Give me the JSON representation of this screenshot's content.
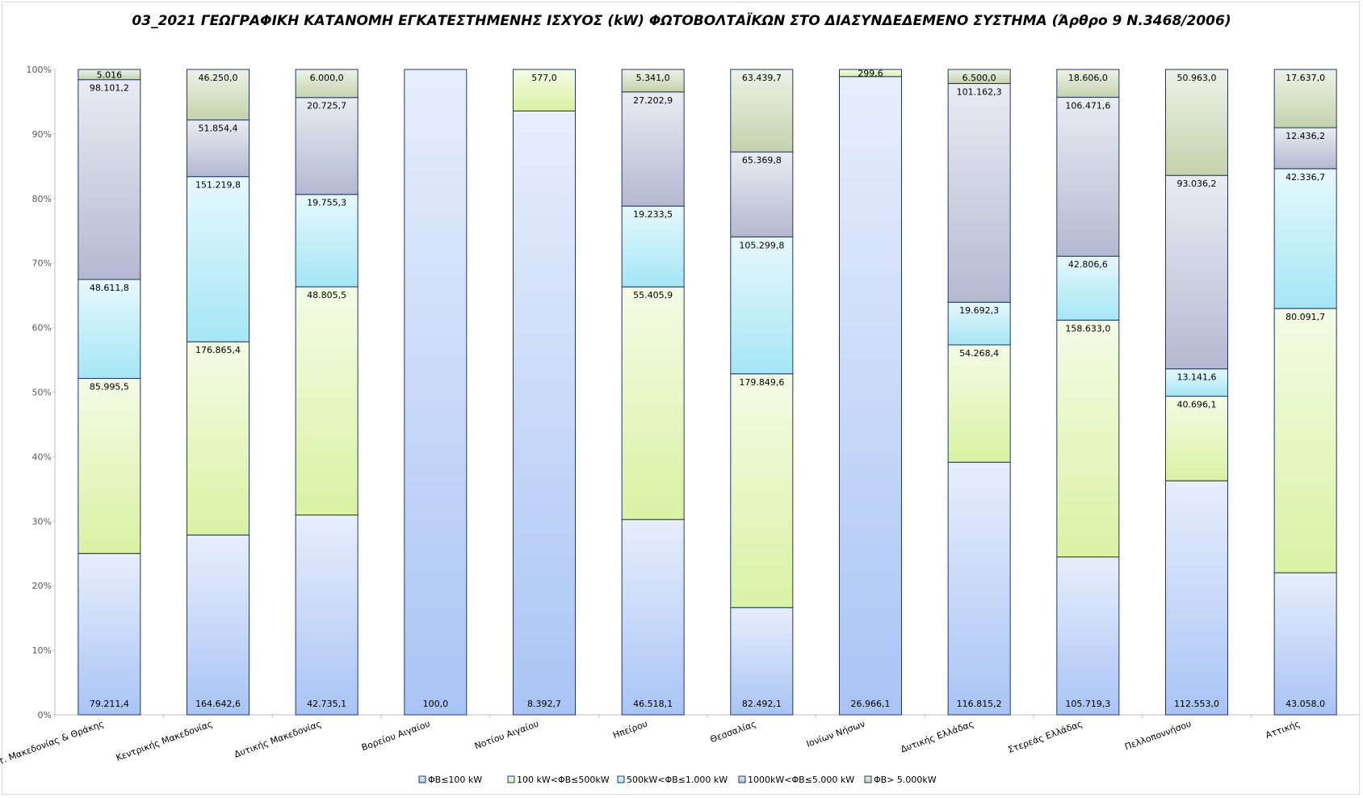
{
  "chart_data": {
    "type": "bar",
    "stacked": true,
    "normalized": true,
    "title": "03_2021 ΓΕΩΓΡΑΦΙΚΗ ΚΑΤΑΝΟΜΗ ΕΓΚΑΤΕΣΤΗΜΕΝΗΣ ΙΣΧΥΟΣ (kW) ΦΩΤΟΒΟΛΤΑΪΚΩΝ ΣΤΟ ΔΙΑΣΥΝΔΕΔΕΜΕΝΟ ΣΥΣΤΗΜΑ (Άρθρο 9 Ν.3468/2006)",
    "xlabel": "",
    "ylabel": "",
    "ylim": [
      0,
      100
    ],
    "yticks": [
      "0%",
      "10%",
      "20%",
      "30%",
      "40%",
      "50%",
      "60%",
      "70%",
      "80%",
      "90%",
      "100%"
    ],
    "legend_position": "bottom",
    "grid": false,
    "categories": [
      "Ανατ. Μακεδονίας & Θράκης",
      "Κεντρικής Μακεδονίας",
      "Δυτικής Μακεδονίας",
      "Βορείου Αιγαίου",
      "Νοτίου Αιγαίου",
      "Ηπείρου",
      "Θεσσαλίας",
      "Ιονίων Νήσων",
      "Δυτικής Ελλάδας",
      "Στερεάς Ελλάδας",
      "Πελλοποννήσου",
      "Αττικής"
    ],
    "series": [
      {
        "name": "ΦΒ≤100 kW",
        "color": "#a9c4f5",
        "values": [
          79211.4,
          164642.6,
          42735.1,
          100.0,
          8392.7,
          46518.1,
          82492.1,
          26966.1,
          116815.2,
          105719.3,
          112553.0,
          43058.0
        ],
        "labels": [
          "79.211,4",
          "164.642,6",
          "42.735,1",
          "100,0",
          "8.392,7",
          "46.518,1",
          "82.492,1",
          "26.966,1",
          "116.815,2",
          "105.719,3",
          "112.553,0",
          "43.058,0"
        ]
      },
      {
        "name": "100 kW<ΦΒ≤500kW",
        "color": "#d9f2a3",
        "values": [
          85995.5,
          176865.4,
          48805.5,
          0,
          577.0,
          55405.9,
          179849.6,
          299.6,
          54268.4,
          158633.0,
          40696.1,
          80091.7
        ],
        "labels": [
          "85.995,5",
          "176.865,4",
          "48.805,5",
          "",
          "577,0",
          "55.405,9",
          "179.849,6",
          "299,6",
          "54.268,4",
          "158.633,0",
          "40.696,1",
          "80.091,7"
        ]
      },
      {
        "name": "500kW<ΦΒ≤1.000 kW",
        "color": "#a5e6f5",
        "values": [
          48611.8,
          151219.8,
          19755.3,
          0,
          0,
          19233.5,
          105299.8,
          0,
          19692.3,
          42806.6,
          13141.6,
          42336.7
        ],
        "labels": [
          "48.611,8",
          "151.219,8",
          "19.755,3",
          "",
          "",
          "19.233,5",
          "105.299,8",
          "",
          "19.692,3",
          "42.806,6",
          "13.141,6",
          "42.336,7"
        ]
      },
      {
        "name": "1000kW<ΦΒ≤5.000 kW",
        "color": "#b3b9d1",
        "values": [
          98101.2,
          51854.4,
          20725.7,
          0,
          0,
          27202.9,
          65369.8,
          0,
          101162.3,
          106471.6,
          93036.2,
          12436.2
        ],
        "labels": [
          "98.101,2",
          "51.854,4",
          "20.725,7",
          "",
          "",
          "27.202,9",
          "65.369,8",
          "",
          "101.162,3",
          "106.471,6",
          "93.036,2",
          "12.436,2"
        ]
      },
      {
        "name": "ΦΒ> 5.000kW",
        "color": "#c3d2ab",
        "values": [
          5016,
          46250.0,
          6000.0,
          0,
          0,
          5341.0,
          63439.7,
          0,
          6500.0,
          18606.0,
          50963.0,
          17637.0
        ],
        "labels": [
          "5.016",
          "46.250,0",
          "6.000,0",
          "",
          "",
          "5.341,0",
          "63.439,7",
          "",
          "6.500,0",
          "18.606,0",
          "50.963,0",
          "17.637,0"
        ]
      }
    ]
  }
}
